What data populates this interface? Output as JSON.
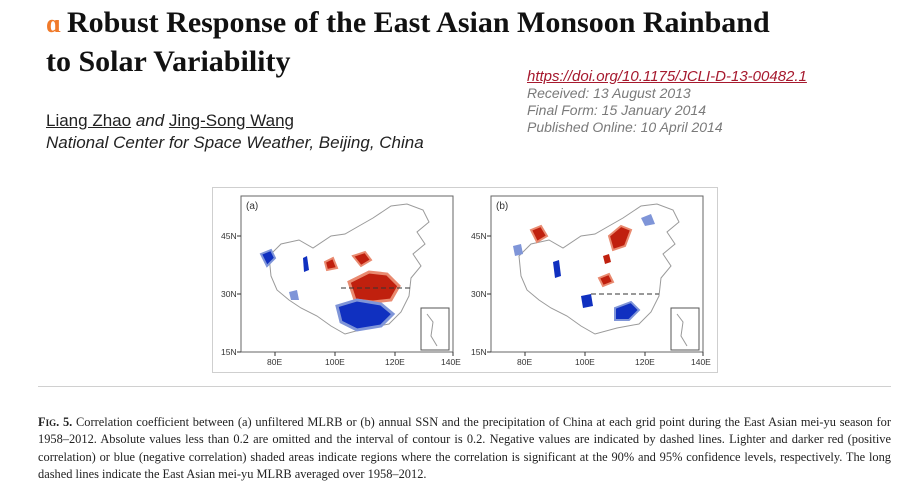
{
  "header": {
    "open_access_icon": "open-access-icon",
    "title_line1": "Robust Response of the East Asian Monsoon Rainband",
    "title_line2": "to Solar Variability"
  },
  "article_meta": {
    "doi": "https://doi.org/10.1175/JCLI-D-13-00482.1",
    "received": "Received: 13 August 2013",
    "final_form": "Final Form: 15 January 2014",
    "published": "Published Online: 10 April 2014"
  },
  "authors": {
    "author1": "Liang Zhao",
    "conjunction": "and",
    "author2": "Jing-Song Wang",
    "affiliation": "National Center for Space Weather, Beijing, China"
  },
  "figure": {
    "panels": [
      {
        "label": "(a)",
        "lat_ticks": [
          "45N",
          "30N",
          "15N"
        ],
        "lon_ticks": [
          "80E",
          "100E",
          "120E",
          "140E"
        ]
      },
      {
        "label": "(b)",
        "lat_ticks": [
          "45N",
          "30N",
          "15N"
        ],
        "lon_ticks": [
          "80E",
          "100E",
          "120E",
          "140E"
        ]
      }
    ],
    "colors": {
      "dark_red": "#c0200e",
      "light_red": "#e98a70",
      "dark_blue": "#1030c0",
      "light_blue": "#7f95d8",
      "outline": "#9a9a9a"
    }
  },
  "caption": {
    "label": "Fig. 5.",
    "text": "Correlation coefficient between (a) unfiltered MLRB or (b) annual SSN and the precipitation of China at each grid point during the East Asian mei-yu season for 1958–2012. Absolute values less than 0.2 are omitted and the interval of contour is 0.2. Negative values are indicated by dashed lines. Lighter and darker red (positive correlation) or blue (negative correlation) shaded areas indicate regions where the correlation is significant at the 90% and 95% confidence levels, respectively. The long dashed lines indicate the East Asian mei-yu MLRB averaged over 1958–2012."
  }
}
